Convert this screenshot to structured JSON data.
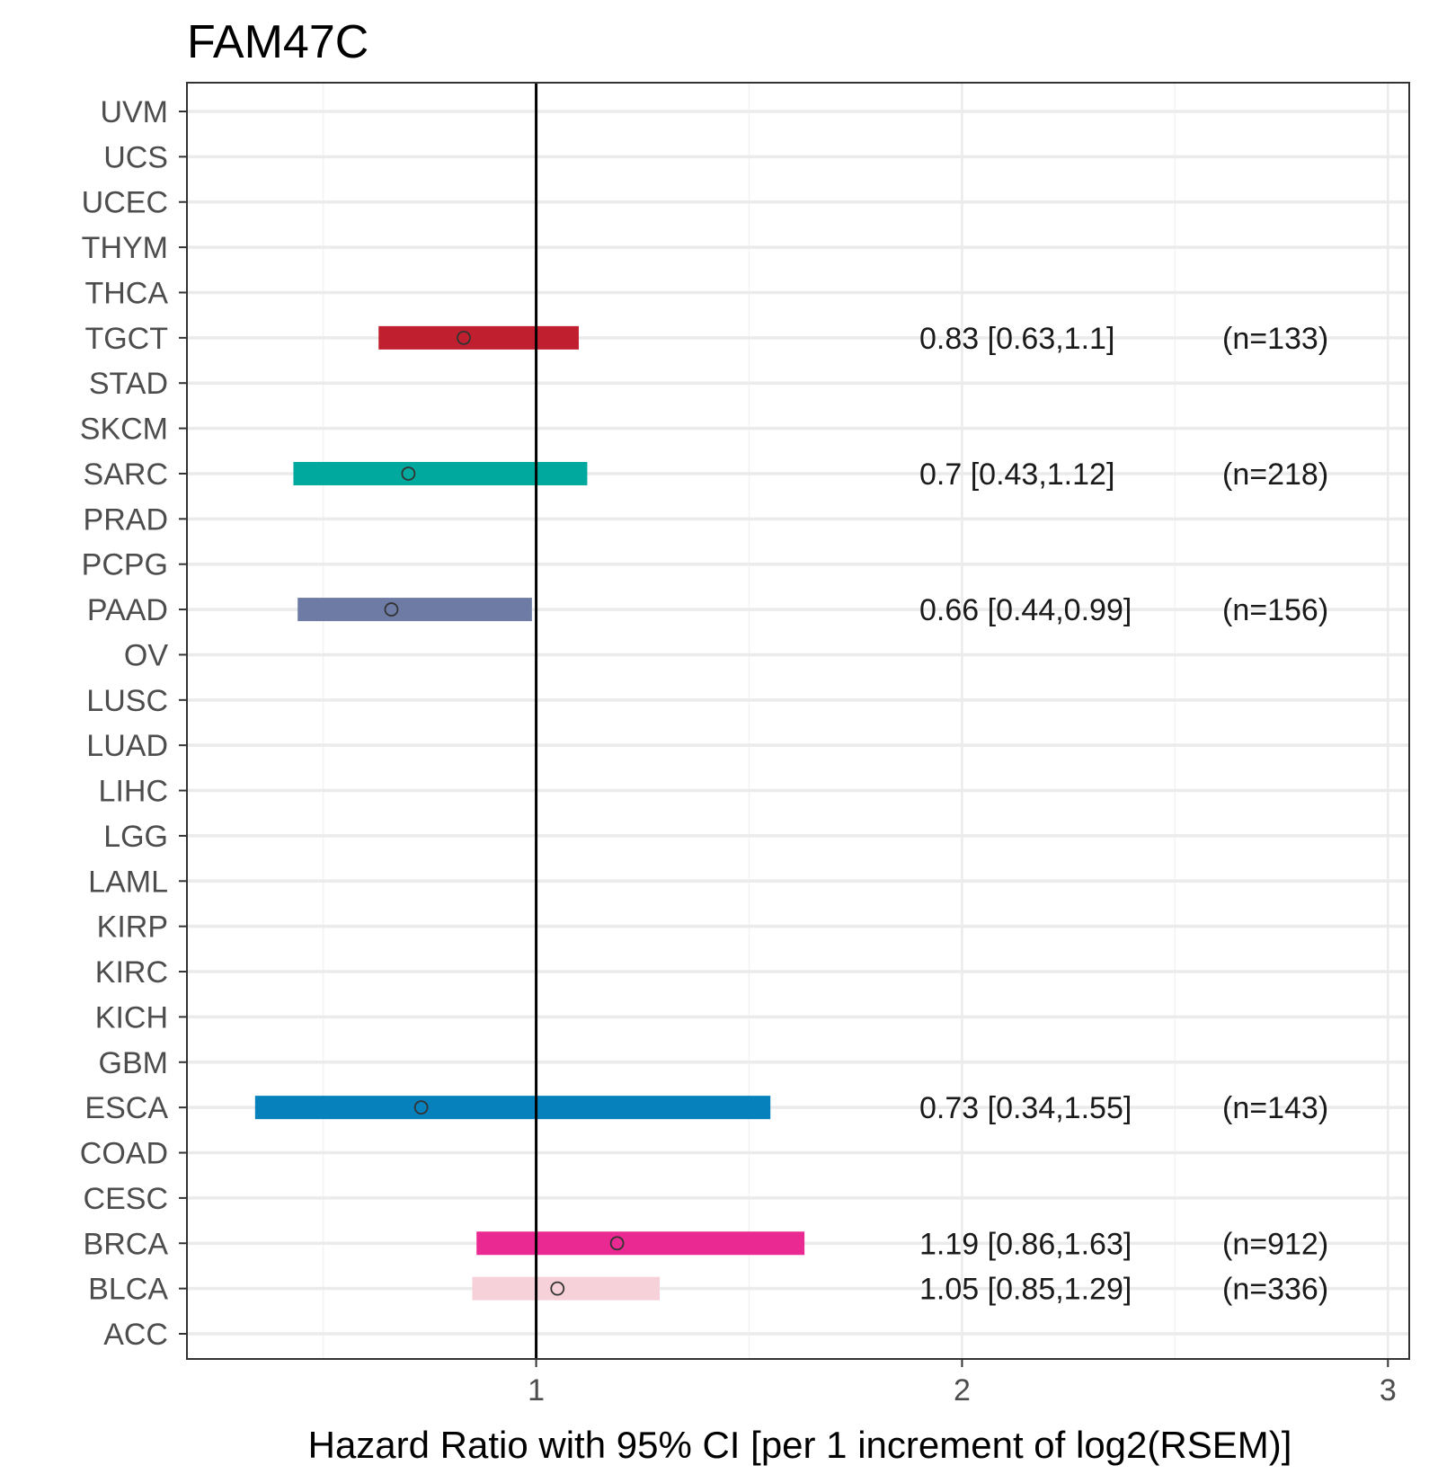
{
  "chart_data": {
    "type": "forest",
    "title": "FAM47C",
    "xlabel": "Hazard Ratio with 95% CI [per 1 increment of log2(RSEM)]",
    "ylabel": "",
    "xlim": [
      0.18,
      3.05
    ],
    "xticks": [
      "1",
      "2",
      "3"
    ],
    "reference_line": 1,
    "grid": true,
    "categories": [
      "UVM",
      "UCS",
      "UCEC",
      "THYM",
      "THCA",
      "TGCT",
      "STAD",
      "SKCM",
      "SARC",
      "PRAD",
      "PCPG",
      "PAAD",
      "OV",
      "LUSC",
      "LUAD",
      "LIHC",
      "LGG",
      "LAML",
      "KIRP",
      "KIRC",
      "KICH",
      "GBM",
      "ESCA",
      "COAD",
      "CESC",
      "BRCA",
      "BLCA",
      "ACC"
    ],
    "rows": [
      {
        "cancer": "TGCT",
        "hr": 0.83,
        "lower": 0.63,
        "upper": 1.1,
        "label": "0.83 [0.63,1.1]",
        "n": "(n=133)",
        "color": "#c01f2f"
      },
      {
        "cancer": "SARC",
        "hr": 0.7,
        "lower": 0.43,
        "upper": 1.12,
        "label": "0.7 [0.43,1.12]",
        "n": "(n=218)",
        "color": "#00a99d"
      },
      {
        "cancer": "PAAD",
        "hr": 0.66,
        "lower": 0.44,
        "upper": 0.99,
        "label": "0.66 [0.44,0.99]",
        "n": "(n=156)",
        "color": "#6e7ba4"
      },
      {
        "cancer": "ESCA",
        "hr": 0.73,
        "lower": 0.34,
        "upper": 1.55,
        "label": "0.73 [0.34,1.55]",
        "n": "(n=143)",
        "color": "#0781bc"
      },
      {
        "cancer": "BRCA",
        "hr": 1.19,
        "lower": 0.86,
        "upper": 1.63,
        "label": "1.19 [0.86,1.63]",
        "n": "(n=912)",
        "color": "#ea2a92"
      },
      {
        "cancer": "BLCA",
        "hr": 1.05,
        "lower": 0.85,
        "upper": 1.29,
        "label": "1.05 [0.85,1.29]",
        "n": "(n=336)",
        "color": "#f7d1da"
      }
    ]
  }
}
